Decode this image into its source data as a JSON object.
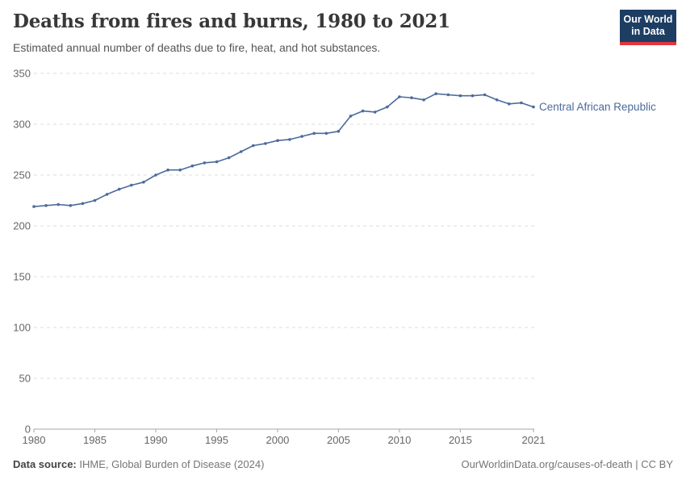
{
  "header": {
    "title": "Deaths from fires and burns, 1980 to 2021",
    "subtitle": "Estimated annual number of deaths due to fire, heat, and hot substances."
  },
  "logo": {
    "line1": "Our World",
    "line2": "in Data",
    "bg_color": "#1d3d63",
    "accent_color": "#e0363d"
  },
  "chart_data": {
    "type": "line",
    "title": "Deaths from fires and burns, 1980 to 2021",
    "subtitle": "Estimated annual number of deaths due to fire, heat, and hot substances.",
    "xlabel": "",
    "ylabel": "",
    "ylim": [
      0,
      350
    ],
    "yticks": [
      0,
      50,
      100,
      150,
      200,
      250,
      300,
      350
    ],
    "xtick_labels": [
      1980,
      1985,
      1990,
      1995,
      2000,
      2005,
      2010,
      2015,
      2021
    ],
    "grid": true,
    "legend": "inline-end-of-line-label",
    "x": [
      1980,
      1981,
      1982,
      1983,
      1984,
      1985,
      1986,
      1987,
      1988,
      1989,
      1990,
      1991,
      1992,
      1993,
      1994,
      1995,
      1996,
      1997,
      1998,
      1999,
      2000,
      2001,
      2002,
      2003,
      2004,
      2005,
      2006,
      2007,
      2008,
      2009,
      2010,
      2011,
      2012,
      2013,
      2014,
      2015,
      2016,
      2017,
      2018,
      2019,
      2020,
      2021
    ],
    "series": [
      {
        "name": "Central African Republic",
        "color": "#4C6A9C",
        "values": [
          219,
          220,
          221,
          220,
          222,
          225,
          231,
          236,
          240,
          243,
          250,
          255,
          255,
          259,
          262,
          263,
          267,
          273,
          279,
          281,
          284,
          285,
          288,
          291,
          291,
          293,
          308,
          313,
          312,
          317,
          327,
          326,
          324,
          330,
          329,
          328,
          328,
          329,
          324,
          320,
          321,
          317
        ]
      }
    ]
  },
  "footer": {
    "source_label": "Data source:",
    "source_text": " IHME, Global Burden of Disease (2024)",
    "credit": "OurWorldinData.org/causes-of-death | CC BY"
  }
}
